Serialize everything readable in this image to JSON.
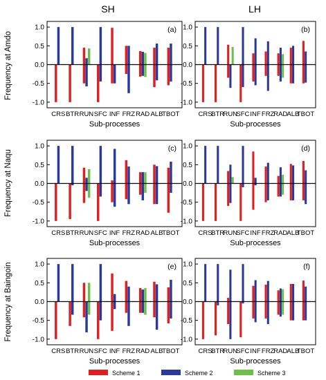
{
  "figure": {
    "column_titles": [
      "SH",
      "LH"
    ],
    "row_labels": [
      "Frequency at Amdo",
      "Frequency at Naqu",
      "Frequency at Baingoin"
    ],
    "xlabel": "Sub-processes",
    "legend": [
      {
        "name": "Scheme 1",
        "color": "#e02020"
      },
      {
        "name": "Scheme 2",
        "color": "#2a3a9c"
      },
      {
        "name": "Scheme 3",
        "color": "#6cc04a"
      }
    ]
  },
  "chart_data": [
    {
      "type": "bar",
      "panel": "(a)",
      "title": "",
      "xlabel": "Sub-processes",
      "ylabel": "Frequency at Amdo",
      "ylim": [
        -1.15,
        1.15
      ],
      "yticks": [
        "-1.0",
        "-0.5",
        "0.0",
        "0.5",
        "1.0"
      ],
      "categories": [
        "CRS",
        "BTR",
        "RUN",
        "SFC",
        "INF",
        "FRZ",
        "RAD",
        "ALB",
        "TBOT"
      ],
      "series": [
        {
          "name": "Scheme 1",
          "pos": [
            0,
            0,
            0.45,
            0,
            0.98,
            0.5,
            0.36,
            0.45,
            0.45
          ],
          "neg": [
            -1.0,
            -1.0,
            -0.5,
            -1.0,
            -0.5,
            -0.25,
            -0.32,
            -0.6,
            -0.55
          ]
        },
        {
          "name": "Scheme 2",
          "pos": [
            1.0,
            1.0,
            0.17,
            1.0,
            0,
            0.5,
            0.34,
            0.56,
            0.56
          ],
          "neg": [
            0,
            0,
            -0.58,
            -0.45,
            -0.5,
            -0.76,
            -0.3,
            -0.42,
            -0.45
          ]
        },
        {
          "name": "Scheme 3",
          "pos": [
            0,
            0,
            0.43,
            0,
            0,
            0,
            0.31,
            0,
            0
          ],
          "neg": [
            0,
            0,
            0,
            0,
            0,
            0,
            -0.33,
            0,
            0
          ]
        }
      ]
    },
    {
      "type": "bar",
      "panel": "(b)",
      "title": "",
      "xlabel": "Sub-processes",
      "ylabel": "",
      "ylim": [
        -1.15,
        1.15
      ],
      "yticks": [
        "-1.0",
        "-0.5",
        "0.0",
        "0.5",
        "1.0"
      ],
      "categories": [
        "CRS",
        "BTR",
        "RUN",
        "SFC",
        "INF",
        "FRZ",
        "RAD",
        "ALB",
        "TBOT"
      ],
      "series": [
        {
          "name": "Scheme 1",
          "pos": [
            0,
            0,
            0.53,
            0,
            0.3,
            0.35,
            0.3,
            0.45,
            0.63
          ],
          "neg": [
            -1.0,
            -1.0,
            -0.35,
            -1.0,
            -0.45,
            -0.3,
            -0.3,
            -0.5,
            -0.5
          ]
        },
        {
          "name": "Scheme 2",
          "pos": [
            1.0,
            1.0,
            0,
            1.0,
            0.7,
            0.62,
            0.45,
            0.5,
            0.35
          ],
          "neg": [
            0,
            0,
            -0.62,
            -0.6,
            -0.55,
            -0.7,
            -0.45,
            -0.5,
            -0.48
          ]
        },
        {
          "name": "Scheme 3",
          "pos": [
            0,
            0,
            0.47,
            0,
            0,
            0,
            0.28,
            0,
            0
          ],
          "neg": [
            0,
            0,
            0,
            0,
            0,
            0,
            -0.35,
            0,
            0
          ]
        }
      ]
    },
    {
      "type": "bar",
      "panel": "(c)",
      "title": "",
      "xlabel": "Sub-processes",
      "ylabel": "Frequency at Naqu",
      "ylim": [
        -1.15,
        1.15
      ],
      "yticks": [
        "-1.0",
        "-0.5",
        "0.0",
        "0.5",
        "1.0"
      ],
      "categories": [
        "CRS",
        "BTR",
        "RUN",
        "SFC",
        "INF",
        "FRZ",
        "RAD",
        "ALB",
        "TBOT"
      ],
      "series": [
        {
          "name": "Scheme 1",
          "pos": [
            0,
            0,
            0.42,
            0,
            0.08,
            0.62,
            0.3,
            0.5,
            0.42
          ],
          "neg": [
            -1.0,
            -0.95,
            -0.52,
            -1.0,
            -0.5,
            -0.42,
            -0.3,
            -0.55,
            -0.78
          ]
        },
        {
          "name": "Scheme 2",
          "pos": [
            1.0,
            1.0,
            0.15,
            1.0,
            0.92,
            0.45,
            0.3,
            0.46,
            0.58
          ],
          "neg": [
            0,
            -0.05,
            -0.2,
            -0.35,
            -0.62,
            -0.55,
            -0.45,
            -0.55,
            -0.25
          ]
        },
        {
          "name": "Scheme 3",
          "pos": [
            0,
            0,
            0.38,
            0,
            0,
            0,
            0.3,
            0,
            0
          ],
          "neg": [
            0,
            0,
            -0.38,
            0,
            0,
            0,
            -0.25,
            0,
            0
          ]
        }
      ]
    },
    {
      "type": "bar",
      "panel": "(d)",
      "title": "",
      "xlabel": "Sub-processes",
      "ylabel": "",
      "ylim": [
        -1.15,
        1.15
      ],
      "yticks": [
        "-1.0",
        "-0.5",
        "0.0",
        "0.5",
        "1.0"
      ],
      "categories": [
        "CRS",
        "BTR",
        "RUN",
        "SFC",
        "INF",
        "FRZ",
        "RAD",
        "ALB",
        "TBOT"
      ],
      "series": [
        {
          "name": "Scheme 1",
          "pos": [
            0,
            0,
            0.33,
            0,
            0.85,
            0.45,
            0.2,
            0.52,
            0.6
          ],
          "neg": [
            -1.0,
            -1.0,
            -0.6,
            -1.0,
            -0.7,
            -0.5,
            -0.35,
            -0.45,
            -0.45
          ]
        },
        {
          "name": "Scheme 2",
          "pos": [
            1.0,
            1.0,
            0.5,
            1.0,
            0.15,
            0.55,
            0.43,
            0.48,
            0.35
          ],
          "neg": [
            0,
            0,
            -0.52,
            -0.1,
            -0.05,
            -0.45,
            -0.35,
            -0.45,
            -0.55
          ]
        },
        {
          "name": "Scheme 3",
          "pos": [
            0,
            0,
            0.17,
            0,
            0,
            0,
            0.23,
            0,
            0
          ],
          "neg": [
            0,
            0,
            0,
            0,
            0,
            0,
            -0.3,
            0,
            0
          ]
        }
      ]
    },
    {
      "type": "bar",
      "panel": "(e)",
      "title": "",
      "xlabel": "Sub-processes",
      "ylabel": "Frequency at Baingoin",
      "ylim": [
        -1.15,
        1.15
      ],
      "yticks": [
        "-1.0",
        "-0.5",
        "0.0",
        "0.5",
        "1.0"
      ],
      "categories": [
        "CRS",
        "BTR",
        "RUN",
        "SFC",
        "INF",
        "FRZ",
        "RAD",
        "ALB",
        "TBOT"
      ],
      "series": [
        {
          "name": "Scheme 1",
          "pos": [
            0,
            0,
            0.5,
            0,
            0.75,
            0.55,
            0.36,
            0.53,
            0.38
          ],
          "neg": [
            -1.0,
            -0.65,
            -0.42,
            -1.0,
            -0.78,
            -0.3,
            -0.3,
            -0.42,
            -0.58
          ]
        },
        {
          "name": "Scheme 2",
          "pos": [
            1.0,
            1.0,
            0,
            1.0,
            0.2,
            0.4,
            0.32,
            0.46,
            0.58
          ],
          "neg": [
            0,
            -0.35,
            -0.82,
            -0.5,
            -0.2,
            -0.65,
            -0.3,
            -0.75,
            -0.45
          ]
        },
        {
          "name": "Scheme 3",
          "pos": [
            0,
            0,
            0.5,
            0,
            0,
            0,
            0.36,
            0,
            0
          ],
          "neg": [
            0,
            0,
            -0.35,
            0,
            0,
            0,
            -0.35,
            0,
            0
          ]
        }
      ]
    },
    {
      "type": "bar",
      "panel": "(f)",
      "title": "",
      "xlabel": "Sub-processes",
      "ylabel": "",
      "ylim": [
        -1.15,
        1.15
      ],
      "yticks": [
        "-1.0",
        "-0.5",
        "0.0",
        "0.5",
        "1.0"
      ],
      "categories": [
        "CRS",
        "BTR",
        "RUN",
        "SFC",
        "INF",
        "FRZ",
        "RAD",
        "ALB",
        "TBOT"
      ],
      "series": [
        {
          "name": "Scheme 1",
          "pos": [
            0,
            0,
            0.1,
            0,
            0.42,
            0.45,
            0.3,
            0.47,
            0.56
          ],
          "neg": [
            -1.0,
            -0.9,
            -0.6,
            -0.95,
            -0.45,
            -0.45,
            -0.35,
            -0.5,
            -0.5
          ]
        },
        {
          "name": "Scheme 2",
          "pos": [
            1.0,
            1.0,
            0.85,
            1.0,
            0.57,
            0.55,
            0.35,
            0.47,
            0.4
          ],
          "neg": [
            0,
            -0.1,
            -1.0,
            -0.05,
            -0.55,
            -0.6,
            -0.4,
            -0.5,
            -0.5
          ]
        },
        {
          "name": "Scheme 3",
          "pos": [
            0,
            0,
            0,
            0,
            0,
            0,
            0.33,
            0,
            0
          ],
          "neg": [
            0,
            0,
            0,
            0,
            0,
            0,
            -0.35,
            0,
            0
          ]
        }
      ]
    }
  ]
}
